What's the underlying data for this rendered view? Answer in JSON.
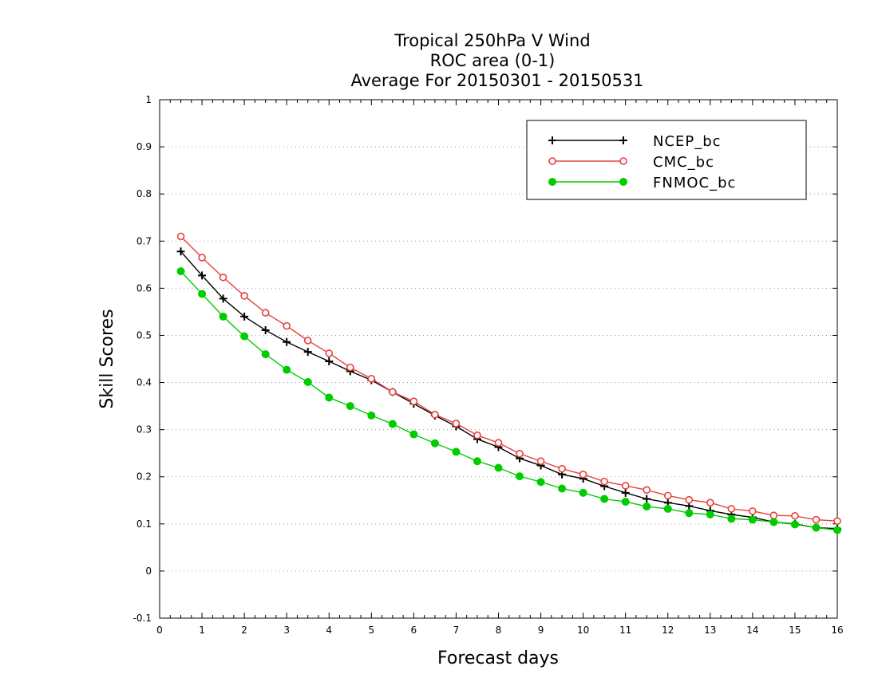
{
  "chart_data": {
    "type": "line",
    "title": [
      "Tropical 250hPa V Wind",
      "ROC area (0-1)",
      "Average For 20150301 - 20150531"
    ],
    "xlabel": "Forecast days",
    "ylabel": "Skill Scores",
    "xlim": [
      0,
      16
    ],
    "ylim": [
      -0.1,
      1
    ],
    "xticks": [
      "0",
      "1",
      "2",
      "3",
      "4",
      "5",
      "6",
      "7",
      "8",
      "9",
      "10",
      "11",
      "12",
      "13",
      "14",
      "15",
      "16"
    ],
    "yticks": [
      "-0.1",
      "0",
      "0.1",
      "0.2",
      "0.3",
      "0.4",
      "0.5",
      "0.6",
      "0.7",
      "0.8",
      "0.9",
      "1"
    ],
    "grid": true,
    "legend_position": "top-right",
    "x": [
      0.5,
      1,
      1.5,
      2,
      2.5,
      3,
      3.5,
      4,
      4.5,
      5,
      5.5,
      6,
      6.5,
      7,
      7.5,
      8,
      8.5,
      9,
      9.5,
      10,
      10.5,
      11,
      11.5,
      12,
      12.5,
      13,
      13.5,
      14,
      14.5,
      15,
      15.5,
      16
    ],
    "series": [
      {
        "name": "NCEP_bc",
        "color": "#000000",
        "marker": "plus",
        "values": [
          0.678,
          0.627,
          0.578,
          0.54,
          0.511,
          0.486,
          0.465,
          0.445,
          0.424,
          0.405,
          0.38,
          0.355,
          0.33,
          0.307,
          0.28,
          0.263,
          0.239,
          0.224,
          0.205,
          0.196,
          0.18,
          0.166,
          0.153,
          0.145,
          0.138,
          0.128,
          0.12,
          0.114,
          0.104,
          0.1,
          0.092,
          0.09
        ]
      },
      {
        "name": "CMC_bc",
        "color": "#e8413c",
        "marker": "open-circle",
        "values": [
          0.71,
          0.665,
          0.623,
          0.584,
          0.548,
          0.52,
          0.489,
          0.462,
          0.432,
          0.408,
          0.38,
          0.36,
          0.332,
          0.313,
          0.288,
          0.272,
          0.249,
          0.233,
          0.217,
          0.205,
          0.19,
          0.181,
          0.172,
          0.16,
          0.151,
          0.145,
          0.132,
          0.127,
          0.118,
          0.117,
          0.109,
          0.106
        ]
      },
      {
        "name": "FNMOC_bc",
        "color": "#00cc00",
        "marker": "filled-circle",
        "values": [
          0.636,
          0.588,
          0.54,
          0.498,
          0.46,
          0.427,
          0.401,
          0.368,
          0.35,
          0.33,
          0.312,
          0.29,
          0.271,
          0.253,
          0.233,
          0.219,
          0.201,
          0.189,
          0.175,
          0.166,
          0.153,
          0.147,
          0.137,
          0.132,
          0.123,
          0.12,
          0.111,
          0.109,
          0.104,
          0.099,
          0.092,
          0.087
        ]
      }
    ]
  }
}
